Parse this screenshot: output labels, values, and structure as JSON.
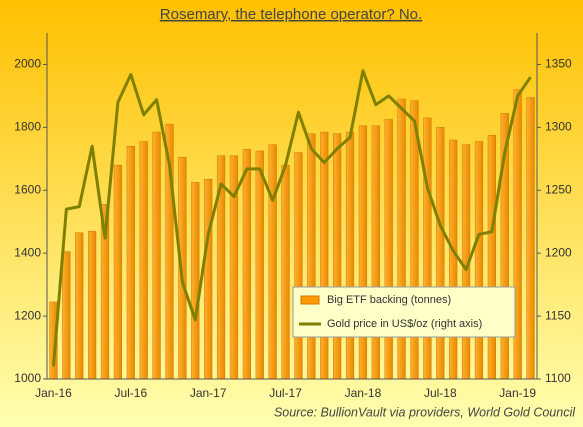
{
  "chart_data": {
    "type": "bar_line",
    "title": "Rosemary, the telephone  operator? No.",
    "source": "Source: BullionVault via providers,  World Gold Council",
    "categories": [
      "Jan-16",
      null,
      null,
      null,
      null,
      null,
      "Jul-16",
      null,
      null,
      null,
      null,
      null,
      "Jan-17",
      null,
      null,
      null,
      null,
      null,
      "Jul-17",
      null,
      null,
      null,
      null,
      null,
      "Jan-18",
      null,
      null,
      null,
      null,
      null,
      "Jul-18",
      null,
      null,
      null,
      null,
      null,
      "Jan-19",
      null
    ],
    "series": [
      {
        "name": "Big ETF backing (tonnes)",
        "type": "bar",
        "color": "#ff9900",
        "values": [
          1245,
          1405,
          1465,
          1470,
          1555,
          1680,
          1740,
          1755,
          1785,
          1810,
          1705,
          1625,
          1635,
          1710,
          1710,
          1730,
          1725,
          1745,
          1680,
          1720,
          1780,
          1785,
          1780,
          1785,
          1805,
          1805,
          1825,
          1890,
          1885,
          1830,
          1800,
          1760,
          1745,
          1755,
          1775,
          1845,
          1920,
          1895
        ]
      },
      {
        "name": "Gold price in US$/oz (right axis)",
        "type": "line",
        "axis": "y2",
        "color": "#808000",
        "values": [
          1110,
          1235,
          1237,
          1285,
          1212,
          1320,
          1342,
          1310,
          1322,
          1270,
          1177,
          1147,
          1215,
          1255,
          1245,
          1267,
          1267,
          1242,
          1270,
          1312,
          1283,
          1272,
          1283,
          1292,
          1345,
          1318,
          1325,
          1315,
          1305,
          1252,
          1222,
          1202,
          1187,
          1215,
          1217,
          1280,
          1325,
          1340
        ]
      }
    ],
    "ylim": [
      1000,
      2100
    ],
    "yticks": [
      1000,
      1200,
      1400,
      1600,
      1800,
      2000
    ],
    "y2lim": [
      1100,
      1375
    ],
    "y2ticks": [
      1100,
      1150,
      1200,
      1250,
      1300,
      1350
    ],
    "grid": false,
    "legend": "lower right"
  }
}
